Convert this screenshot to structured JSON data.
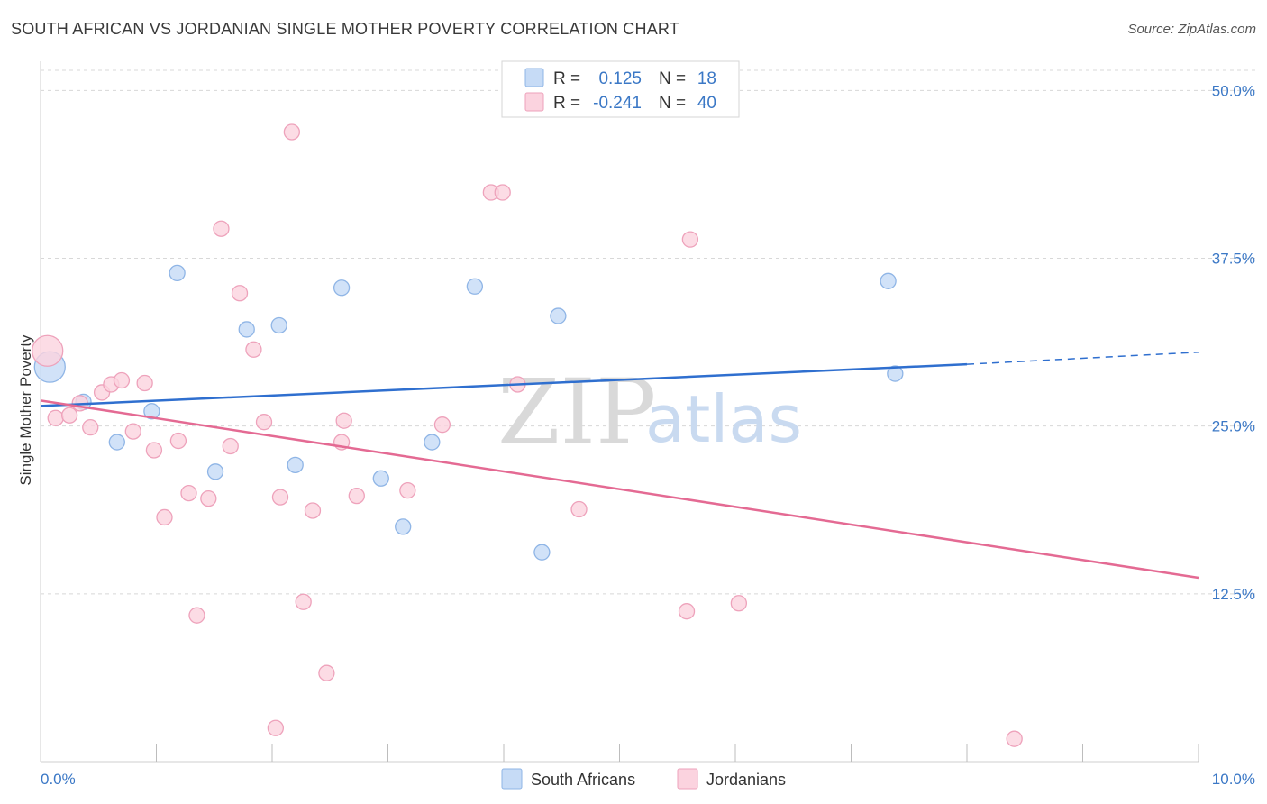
{
  "header": {
    "title": "SOUTH AFRICAN VS JORDANIAN SINGLE MOTHER POVERTY CORRELATION CHART",
    "source": "Source: ZipAtlas.com"
  },
  "watermark": {
    "part1": "ZIP",
    "part2": "atlas"
  },
  "stats": [
    {
      "r_label": "R =",
      "r_value": "0.125",
      "n_label": "N =",
      "n_value": "18",
      "color": "#a9c8f0"
    },
    {
      "r_label": "R =",
      "r_value": "-0.241",
      "n_label": "N =",
      "n_value": "40",
      "color": "#f5b8ca"
    }
  ],
  "colors": {
    "blue_line": "#2f6fcf",
    "pink_line": "#e46a93",
    "blue_fill": "#c6dbf6",
    "blue_stroke": "#8fb5e6",
    "pink_fill": "#fbd3df",
    "pink_stroke": "#eea2bb",
    "tick_text": "#3b78c6",
    "grid": "#d8d8d8"
  },
  "chart_data": {
    "type": "scatter",
    "title": "SOUTH AFRICAN VS JORDANIAN SINGLE MOTHER POVERTY CORRELATION CHART",
    "xlabel": "",
    "ylabel": "Single Mother Poverty",
    "xlim": [
      0,
      10
    ],
    "ylim": [
      0,
      51.5
    ],
    "x_tick_labels": [
      "0.0%",
      "10.0%"
    ],
    "y_ticks": [
      12.5,
      25.0,
      37.5,
      50.0
    ],
    "y_tick_labels": [
      "12.5%",
      "25.0%",
      "37.5%",
      "50.0%"
    ],
    "grid": true,
    "legend_position": "bottom-center",
    "series": [
      {
        "name": "South Africans",
        "color": "#2f6fcf",
        "trend": {
          "x": [
            0.0,
            8.0
          ],
          "y": [
            26.5,
            29.6
          ],
          "dashed_to": [
            10.0,
            30.5
          ]
        },
        "points": [
          {
            "x": 0.08,
            "y": 29.4,
            "big": true
          },
          {
            "x": 0.37,
            "y": 26.8
          },
          {
            "x": 0.66,
            "y": 23.8
          },
          {
            "x": 0.96,
            "y": 26.1
          },
          {
            "x": 1.18,
            "y": 36.4
          },
          {
            "x": 1.51,
            "y": 21.6
          },
          {
            "x": 1.78,
            "y": 32.2
          },
          {
            "x": 2.06,
            "y": 32.5
          },
          {
            "x": 2.2,
            "y": 22.1
          },
          {
            "x": 2.6,
            "y": 35.3
          },
          {
            "x": 2.94,
            "y": 21.1
          },
          {
            "x": 3.13,
            "y": 17.5
          },
          {
            "x": 3.38,
            "y": 23.8
          },
          {
            "x": 3.75,
            "y": 35.4
          },
          {
            "x": 4.33,
            "y": 15.6
          },
          {
            "x": 4.47,
            "y": 33.2
          },
          {
            "x": 7.32,
            "y": 35.8
          },
          {
            "x": 7.38,
            "y": 28.9
          }
        ]
      },
      {
        "name": "Jordanians",
        "color": "#e46a93",
        "trend": {
          "x": [
            0.0,
            10.0
          ],
          "y": [
            26.9,
            13.7
          ]
        },
        "points": [
          {
            "x": 0.06,
            "y": 30.6,
            "big": true
          },
          {
            "x": 0.13,
            "y": 25.6
          },
          {
            "x": 0.25,
            "y": 25.8
          },
          {
            "x": 0.34,
            "y": 26.7
          },
          {
            "x": 0.43,
            "y": 24.9
          },
          {
            "x": 0.53,
            "y": 27.5
          },
          {
            "x": 0.61,
            "y": 28.1
          },
          {
            "x": 0.7,
            "y": 28.4
          },
          {
            "x": 0.8,
            "y": 24.6
          },
          {
            "x": 0.9,
            "y": 28.2
          },
          {
            "x": 0.98,
            "y": 23.2
          },
          {
            "x": 1.07,
            "y": 18.2
          },
          {
            "x": 1.19,
            "y": 23.9
          },
          {
            "x": 1.28,
            "y": 20.0
          },
          {
            "x": 1.35,
            "y": 10.9
          },
          {
            "x": 1.45,
            "y": 19.6
          },
          {
            "x": 1.56,
            "y": 39.7
          },
          {
            "x": 1.64,
            "y": 23.5
          },
          {
            "x": 1.72,
            "y": 34.9
          },
          {
            "x": 1.84,
            "y": 30.7
          },
          {
            "x": 1.93,
            "y": 25.3
          },
          {
            "x": 2.03,
            "y": 2.5
          },
          {
            "x": 2.07,
            "y": 19.7
          },
          {
            "x": 2.17,
            "y": 46.9
          },
          {
            "x": 2.27,
            "y": 11.9
          },
          {
            "x": 2.35,
            "y": 18.7
          },
          {
            "x": 2.47,
            "y": 6.6
          },
          {
            "x": 2.6,
            "y": 23.8
          },
          {
            "x": 2.62,
            "y": 25.4
          },
          {
            "x": 2.73,
            "y": 19.8
          },
          {
            "x": 3.17,
            "y": 20.2
          },
          {
            "x": 3.47,
            "y": 25.1
          },
          {
            "x": 3.89,
            "y": 42.4
          },
          {
            "x": 3.99,
            "y": 42.4
          },
          {
            "x": 4.12,
            "y": 28.1
          },
          {
            "x": 4.65,
            "y": 18.8
          },
          {
            "x": 5.58,
            "y": 11.2
          },
          {
            "x": 5.61,
            "y": 38.9
          },
          {
            "x": 6.03,
            "y": 11.8
          },
          {
            "x": 8.41,
            "y": 1.7
          }
        ]
      }
    ]
  }
}
